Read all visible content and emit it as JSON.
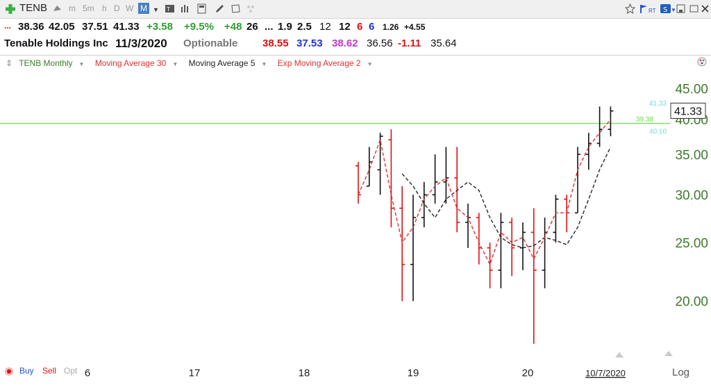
{
  "toolbar": {
    "ticker": "TENB",
    "timeframes": [
      "m",
      "5m",
      "h",
      "D",
      "W",
      "M"
    ],
    "active_timeframe": "M"
  },
  "quote": {
    "open": "38.36",
    "high": "42.05",
    "low": "37.51",
    "last": "41.33",
    "change": "+3.58",
    "change_pct": "+9.5%",
    "f1": "+48",
    "f2": "26",
    "f3": "...",
    "f4": "1.9",
    "f5": "2.5",
    "f6": "12",
    "f7": "12",
    "f8": "6",
    "f9": "6",
    "f10": "1.26",
    "f11": "+4.55",
    "company": "Tenable Holdings Inc",
    "date": "11/3/2020",
    "optionable": "Optionable",
    "v1": "38.55",
    "v2": "37.53",
    "v3": "38.62",
    "v4": "36.56",
    "v5": "-1.11",
    "v6": "35.64",
    "ellipsis": "..."
  },
  "legend": {
    "symbol": "TENB Monthly",
    "ma30": "Moving Average 30",
    "ma5": "Moving Average 5",
    "ema2": "Exp Moving Average 2"
  },
  "bottom": {
    "buy": "Buy",
    "sell": "Sell",
    "opt": "Opt",
    "log": "Log"
  },
  "colors": {
    "up": "#111111",
    "down": "#e01010",
    "ma5": "#222222",
    "ema2": "#e03030",
    "hline": "#66dd44",
    "axis": "#3d7a2a"
  },
  "chart_data": {
    "type": "ohlc",
    "scale": "log",
    "title": "TENB Monthly",
    "ylim": [
      16.0,
      48.0
    ],
    "y_ticks": [
      20,
      25,
      30,
      35,
      40,
      45
    ],
    "y_tick_labels": [
      "20.00",
      "25.00",
      "30.00",
      "35.00",
      "40.00",
      "45.00"
    ],
    "x_tick_labels": [
      "6",
      "17",
      "18",
      "19",
      "20",
      "10/7/2020"
    ],
    "horizontal_line": 39.38,
    "axis_labels": {
      "last": "41.33",
      "hl": "39.38",
      "a": "41.33",
      "b": "40.10"
    },
    "bars": [
      {
        "o": 33.5,
        "h": 34.0,
        "l": 29.0,
        "c": 30.0
      },
      {
        "o": 31.0,
        "h": 36.0,
        "l": 31.0,
        "c": 34.0
      },
      {
        "o": 33.0,
        "h": 38.0,
        "l": 30.0,
        "c": 37.5
      },
      {
        "o": 37.0,
        "h": 38.5,
        "l": 26.5,
        "c": 28.5
      },
      {
        "o": 28.5,
        "h": 31.0,
        "l": 20.0,
        "c": 23.0
      },
      {
        "o": 23.0,
        "h": 30.0,
        "l": 20.0,
        "c": 27.5
      },
      {
        "o": 27.5,
        "h": 31.5,
        "l": 26.5,
        "c": 30.0
      },
      {
        "o": 30.0,
        "h": 35.0,
        "l": 29.0,
        "c": 31.5
      },
      {
        "o": 31.5,
        "h": 36.0,
        "l": 29.0,
        "c": 32.0
      },
      {
        "o": 32.0,
        "h": 36.0,
        "l": 26.0,
        "c": 27.0
      },
      {
        "o": 27.0,
        "h": 29.0,
        "l": 24.5,
        "c": 27.5
      },
      {
        "o": 27.5,
        "h": 28.0,
        "l": 23.0,
        "c": 24.5
      },
      {
        "o": 24.5,
        "h": 25.0,
        "l": 21.0,
        "c": 22.5
      },
      {
        "o": 22.5,
        "h": 28.0,
        "l": 21.0,
        "c": 27.0
      },
      {
        "o": 27.0,
        "h": 27.5,
        "l": 22.0,
        "c": 24.5
      },
      {
        "o": 24.5,
        "h": 27.0,
        "l": 22.5,
        "c": 26.0
      },
      {
        "o": 26.0,
        "h": 28.5,
        "l": 17.0,
        "c": 22.5
      },
      {
        "o": 22.5,
        "h": 27.5,
        "l": 21.0,
        "c": 26.0
      },
      {
        "o": 26.0,
        "h": 30.0,
        "l": 25.0,
        "c": 29.5
      },
      {
        "o": 29.5,
        "h": 30.0,
        "l": 26.0,
        "c": 28.0
      },
      {
        "o": 28.0,
        "h": 36.0,
        "l": 28.0,
        "c": 35.0
      },
      {
        "o": 35.0,
        "h": 38.0,
        "l": 33.0,
        "c": 36.5
      },
      {
        "o": 36.5,
        "h": 42.0,
        "l": 36.0,
        "c": 38.5
      },
      {
        "o": 38.5,
        "h": 42.0,
        "l": 37.5,
        "c": 41.3
      }
    ],
    "ma5": [
      null,
      null,
      null,
      null,
      32.5,
      31.0,
      29.0,
      27.5,
      29.5,
      30.5,
      31.5,
      30.5,
      27.5,
      25.5,
      24.8,
      24.5,
      24.7,
      25.5,
      25.2,
      24.8,
      26.5,
      29.5,
      33.0,
      36.0
    ],
    "ema2": [
      30.0,
      33.0,
      37.0,
      30.0,
      25.0,
      26.5,
      29.5,
      31.0,
      32.0,
      28.5,
      27.5,
      25.0,
      23.0,
      26.0,
      25.0,
      25.5,
      23.5,
      25.5,
      28.0,
      28.0,
      33.0,
      36.0,
      38.0,
      40.0
    ]
  }
}
